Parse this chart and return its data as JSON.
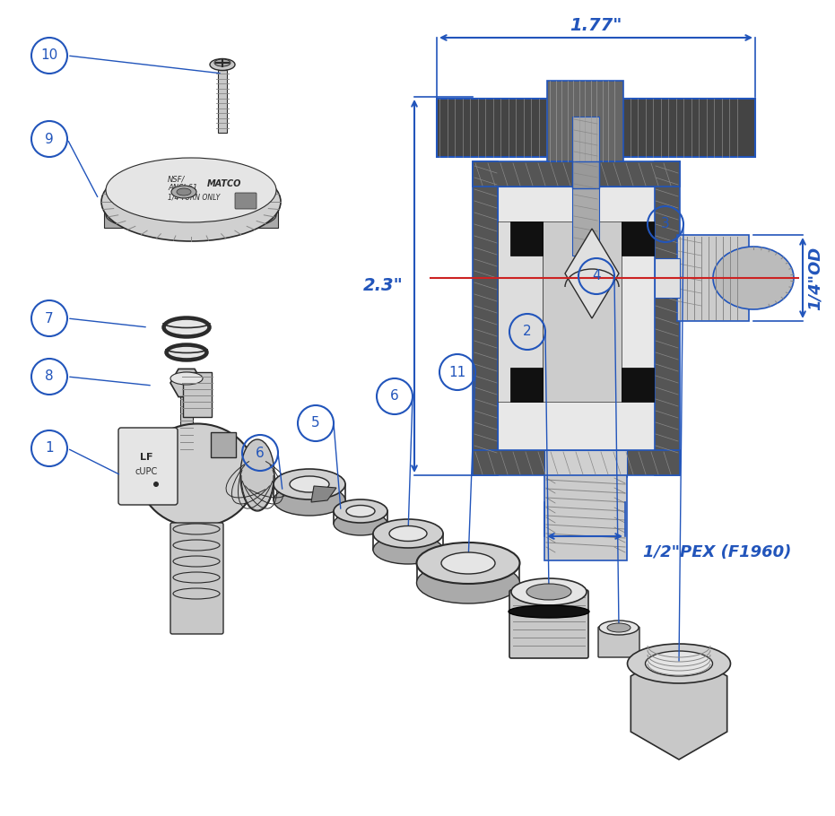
{
  "bg_color": "#ffffff",
  "blue": "#2255bb",
  "dark": "#2a2a2a",
  "gray1": "#c8c8c8",
  "gray2": "#aaaaaa",
  "gray3": "#888888",
  "gray4": "#555555",
  "gray_light": "#e5e5e5",
  "gray_mid": "#d0d0d0",
  "dim_177": "1.77\"",
  "dim_23": "2.3\"",
  "dim_14od": "1/4\"OD",
  "dim_pex": "1/2\"PEX (F1960)",
  "figw": 9.31,
  "figh": 9.1,
  "dpi": 100
}
